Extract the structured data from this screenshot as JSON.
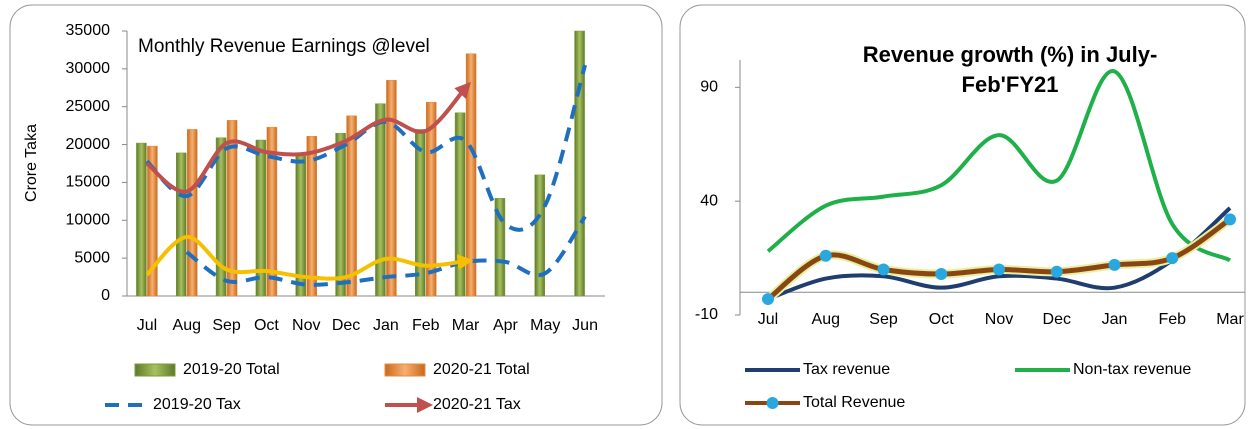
{
  "chart_data": [
    {
      "type": "bar",
      "title": "Monthly Revenue Earnings @level",
      "ylabel": "Crore Taka",
      "categories": [
        "Jul",
        "Aug",
        "Sep",
        "Oct",
        "Nov",
        "Dec",
        "Jan",
        "Feb",
        "Mar",
        "Apr",
        "May",
        "Jun"
      ],
      "ylim": [
        0,
        35000
      ],
      "yticks": [
        0,
        5000,
        10000,
        15000,
        20000,
        25000,
        30000,
        35000
      ],
      "series": [
        {
          "name": "2019-20 Total",
          "type": "bar",
          "color": "#7a9a3a",
          "values": [
            20200,
            18900,
            20900,
            20600,
            18500,
            21500,
            25400,
            22000,
            24200,
            12900,
            16000,
            35000
          ]
        },
        {
          "name": "2020-21 Total",
          "type": "bar",
          "color": "#e8883a",
          "values": [
            19800,
            22000,
            23200,
            22300,
            21100,
            23800,
            28500,
            25600,
            32000,
            null,
            null,
            null
          ]
        },
        {
          "name": "2019-20 Tax",
          "type": "line",
          "dashed": true,
          "color": "#1f6fc0",
          "values": [
            17800,
            13200,
            19500,
            18500,
            17800,
            20000,
            23000,
            19000,
            20500,
            9500,
            12000,
            30500
          ]
        },
        {
          "name": "2020-21 Tax",
          "type": "line",
          "arrow": true,
          "color": "#c0504d",
          "values": [
            17500,
            13800,
            20200,
            19000,
            18800,
            20500,
            23300,
            21800,
            27500,
            null,
            null,
            null
          ]
        },
        {
          "type": "line",
          "dashed": true,
          "color": "#1f6fc0",
          "values": [
            null,
            5800,
            2000,
            2500,
            1500,
            1800,
            2500,
            3000,
            4500,
            4500,
            3000,
            10500
          ]
        },
        {
          "type": "line",
          "arrow": true,
          "color": "#f5c000",
          "values": [
            2800,
            7800,
            3500,
            3300,
            2500,
            2500,
            4900,
            4000,
            4600,
            null,
            null,
            null
          ]
        }
      ]
    },
    {
      "type": "line",
      "title": "Revenue growth (%) in  July-Feb'FY21",
      "categories": [
        "Jul",
        "Aug",
        "Sep",
        "Oct",
        "Nov",
        "Dec",
        "Jan",
        "Feb",
        "Mar"
      ],
      "ylim": [
        -10,
        102
      ],
      "yticks": [
        -10,
        40,
        90
      ],
      "series": [
        {
          "name": "Tax revenue",
          "color": "#1f3d6e",
          "values": [
            -3,
            6,
            7,
            2,
            7,
            6,
            2,
            14,
            37
          ]
        },
        {
          "name": "Non-tax revenue",
          "color": "#1fb04a",
          "values": [
            18,
            38,
            42,
            47,
            69,
            49,
            97,
            30,
            14
          ]
        },
        {
          "name": "Total Revenue",
          "color": "#8b4513",
          "markers": true,
          "marker_color": "#29a8e0",
          "values": [
            -3,
            16,
            10,
            8,
            10,
            9,
            12,
            15,
            32
          ]
        }
      ]
    }
  ]
}
